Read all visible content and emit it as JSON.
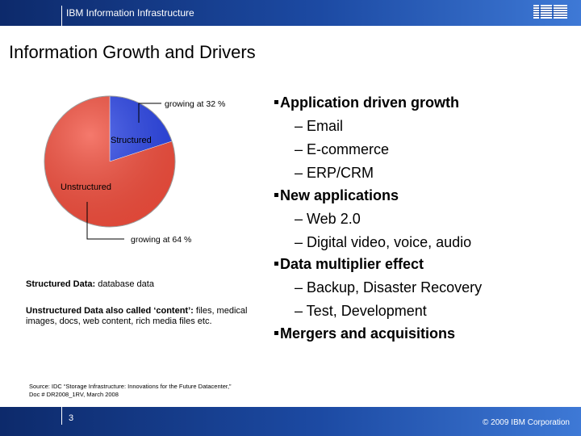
{
  "header": {
    "title": "IBM Information Infrastructure",
    "logo_text": "IBM"
  },
  "slide": {
    "title": "Information Growth and Drivers"
  },
  "chart_data": {
    "type": "pie",
    "slices": [
      {
        "label": "Structured",
        "share_percent": 20,
        "color": "#2a44e6",
        "growth_label": "growing at 32 %"
      },
      {
        "label": "Unstructured",
        "share_percent": 80,
        "color": "#f24d3c",
        "growth_label": "growing at 64 %"
      }
    ]
  },
  "notes": {
    "structured_label": "Structured Data:",
    "structured_text": " database data",
    "unstructured_label": "Unstructured Data also called ‘content’:",
    "unstructured_text": " files, medical images, docs, web content, rich media files etc."
  },
  "bullets": [
    {
      "text": "Application driven growth",
      "subs": [
        "– Email",
        "– E-commerce",
        "– ERP/CRM"
      ]
    },
    {
      "text": "New applications",
      "subs": [
        "– Web 2.0",
        "– Digital video, voice, audio"
      ]
    },
    {
      "text": "Data multiplier effect",
      "subs": [
        "– Backup, Disaster Recovery",
        "– Test, Development"
      ]
    },
    {
      "text": "Mergers and acquisitions",
      "subs": []
    }
  ],
  "source": "Source: IDC “Storage Infrastructure: Innovations for the Future Datacenter,” Doc # DR2008_1RV, March 2008",
  "footer": {
    "page_number": "3",
    "copyright": "© 2009 IBM Corporation"
  },
  "colors": {
    "bar_dark": "#0d2a6b",
    "bar_light": "#3e79d6",
    "structured": "#2a44e6",
    "unstructured": "#f24d3c"
  }
}
